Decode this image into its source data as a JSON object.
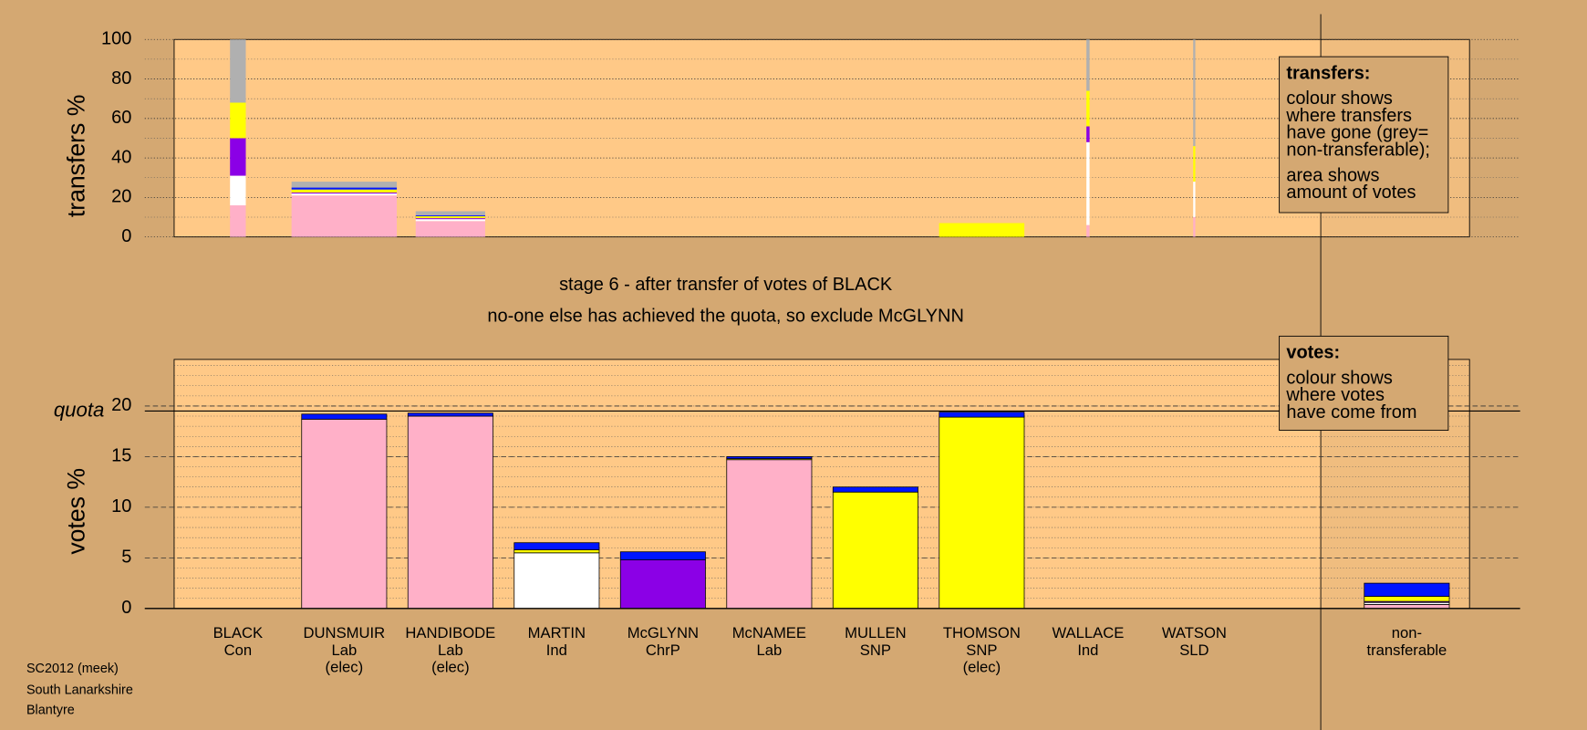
{
  "chart_data": [
    {
      "type": "stacked_bar",
      "ylabel": "transfers %",
      "ylim": [
        0,
        100
      ],
      "yticks": [
        0,
        20,
        40,
        60,
        80,
        100
      ],
      "grid": true,
      "widths": [
        1.5,
        10,
        6.6,
        0,
        0,
        0,
        0,
        8.1,
        0.3,
        0.2
      ],
      "series": [
        {
          "color": "#ffb0c8",
          "values": [
            16,
            21,
            8,
            0,
            0,
            0,
            0,
            0,
            6,
            10
          ]
        },
        {
          "color": "#ffffff",
          "values": [
            15,
            1,
            1,
            0,
            0,
            0,
            0,
            0,
            42,
            18
          ]
        },
        {
          "color": "#8b00e6",
          "values": [
            19,
            0.5,
            0.5,
            0,
            0,
            0,
            0,
            0,
            8,
            0
          ]
        },
        {
          "color": "#ffff00",
          "values": [
            18,
            1.5,
            1,
            0,
            0,
            0,
            0,
            7,
            18,
            18
          ]
        },
        {
          "color": "#0015ff",
          "values": [
            0,
            1,
            0.5,
            0,
            0,
            0,
            0,
            0,
            0,
            0
          ]
        },
        {
          "color": "#b0b0b0",
          "values": [
            32,
            3,
            2,
            0,
            0,
            0,
            0,
            0,
            26,
            54
          ]
        }
      ],
      "legend_note": {
        "heading": "transfers:",
        "paragraphs": [
          [
            "colour shows",
            "where transfers",
            "have gone (grey=",
            "non-transferable);"
          ],
          [
            "area shows",
            "amount of votes"
          ]
        ]
      }
    },
    {
      "type": "stacked_bar",
      "title": "stage 6 - after transfer of votes of BLACK",
      "subtitle": "no-one else has achieved the quota, so exclude McGLYNN",
      "ylabel": "votes %",
      "ylim": [
        0,
        24.6
      ],
      "yticks": [
        0,
        5,
        10,
        15,
        20
      ],
      "grid": true,
      "quota": 19.5,
      "quota_label": "quota",
      "categories": [
        [
          "BLACK",
          "Con"
        ],
        [
          "DUNSMUIR",
          "Lab",
          "(elec)"
        ],
        [
          "HANDIBODE",
          "Lab",
          "(elec)"
        ],
        [
          "MARTIN",
          "Ind"
        ],
        [
          "McGLYNN",
          "ChrP"
        ],
        [
          "McNAMEE",
          "Lab"
        ],
        [
          "MULLEN",
          "SNP"
        ],
        [
          "THOMSON",
          "SNP",
          "(elec)"
        ],
        [
          "WALLACE",
          "Ind"
        ],
        [
          "WATSON",
          "SLD"
        ],
        [
          "non-",
          "transferable"
        ]
      ],
      "series": [
        {
          "color": "#ffb0c8",
          "values": [
            0,
            18.7,
            19.0,
            0,
            0,
            14.7,
            0,
            0,
            0,
            0,
            0.4
          ]
        },
        {
          "color": "#ffffff",
          "values": [
            0,
            0,
            0,
            5.5,
            0,
            0,
            0,
            0,
            0,
            0,
            0.2
          ]
        },
        {
          "color": "#8b00e6",
          "values": [
            0,
            0,
            0,
            0,
            4.8,
            0,
            0,
            0,
            0,
            0,
            0.1
          ]
        },
        {
          "color": "#ffff00",
          "values": [
            0,
            0,
            0,
            0.3,
            0,
            0.1,
            11.5,
            18.9,
            0,
            0,
            0.5
          ]
        },
        {
          "color": "#0015ff",
          "values": [
            0,
            0.5,
            0.3,
            0.7,
            0.8,
            0.2,
            0.5,
            0.5,
            0,
            0,
            1.3
          ]
        }
      ],
      "legend_note": {
        "heading": "votes:",
        "paragraphs": [
          [
            "colour shows",
            "where votes",
            "have come from"
          ]
        ]
      }
    }
  ],
  "footer": [
    "SC2012 (meek)",
    "South Lanarkshire",
    "Blantyre"
  ]
}
